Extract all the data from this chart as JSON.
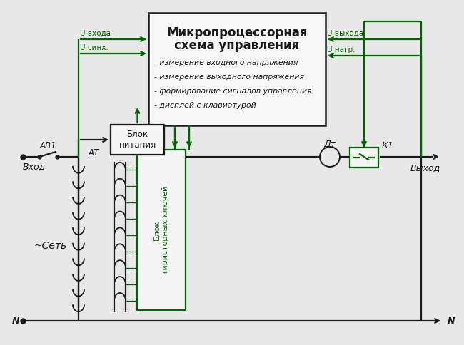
{
  "bg_color": "#e8e8e8",
  "lc": "#006600",
  "tc": "#006600",
  "dark": "#1a1a1a",
  "mcu_title_line1": "Микропроцессорная",
  "mcu_title_line2": "схема управления",
  "mcu_bullets": [
    "- измерение входного напряжения",
    "- измерение выходного напряжения",
    "- формирование сигналов управления",
    "- дисплей с клавиатурой"
  ],
  "label_blok_pitania": "Блок\nпитания",
  "label_at": "АТ",
  "label_av1": "АВ1",
  "label_vhod": "Вход",
  "label_vyhod": "Выход",
  "label_set": "~Сеть",
  "label_n_left": "N",
  "label_n_right": "N",
  "label_dt": "Дт",
  "label_k1": "К1",
  "label_blok_tirist": "Блок\nтиристорных ключей",
  "label_u_vhoda": "U входа",
  "label_u_sinx": "U синх.",
  "label_u_vyhoda": "U выхода",
  "label_u_nagr": "U нагр."
}
